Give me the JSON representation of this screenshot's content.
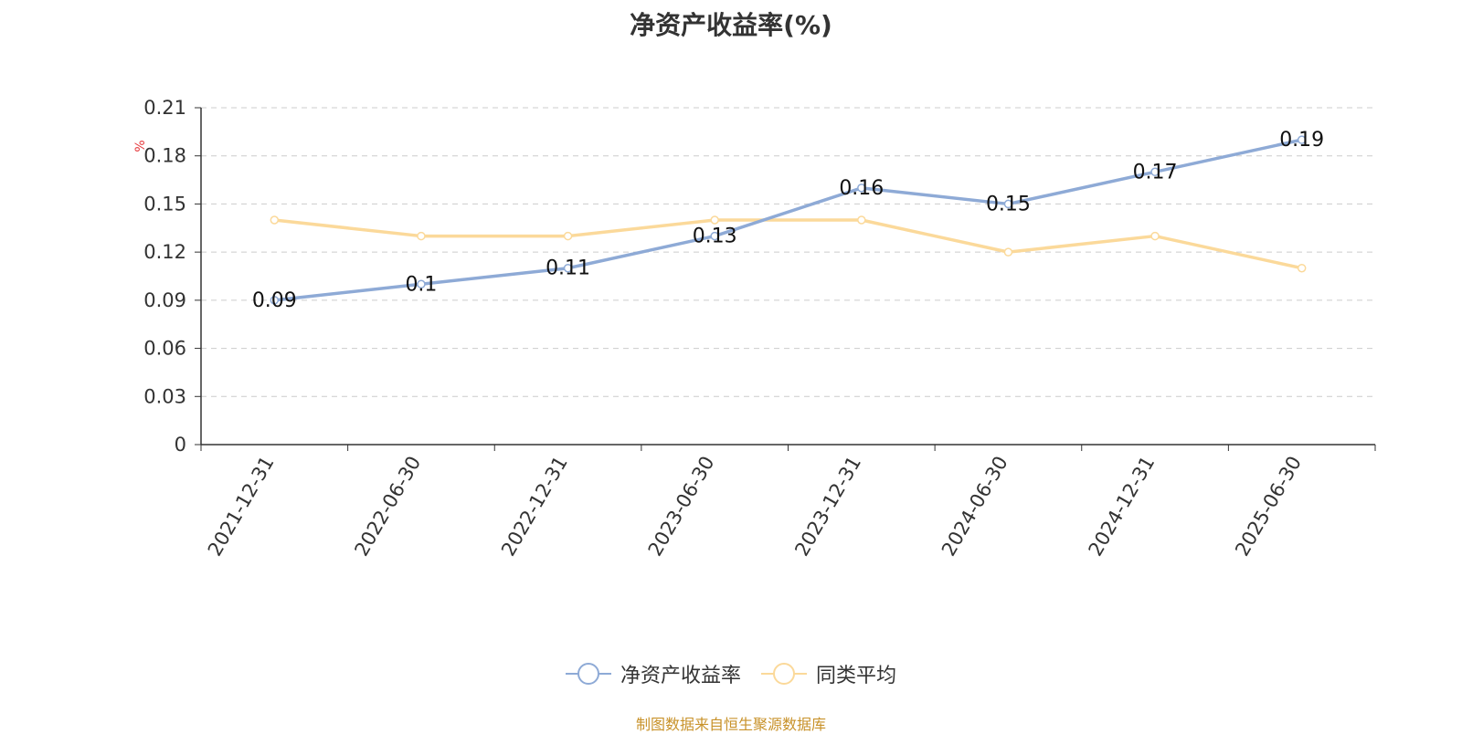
{
  "chart_data": {
    "type": "line",
    "title": "净资产收益率(%)",
    "ylabel": "%",
    "categories": [
      "2021-12-31",
      "2022-06-30",
      "2022-12-31",
      "2023-06-30",
      "2023-12-31",
      "2024-06-30",
      "2024-12-31",
      "2025-06-30"
    ],
    "ylim": [
      0,
      0.21
    ],
    "yticks": [
      "0",
      "0.03",
      "0.06",
      "0.09",
      "0.12",
      "0.15",
      "0.18",
      "0.21"
    ],
    "grid": true,
    "legend_position": "bottom",
    "series": [
      {
        "name": "净资产收益率",
        "color": "#8eaad6",
        "values": [
          0.09,
          0.1,
          0.11,
          0.13,
          0.16,
          0.15,
          0.17,
          0.19
        ],
        "labels": [
          "0.09",
          "0.1",
          "0.11",
          "0.13",
          "0.16",
          "0.15",
          "0.17",
          "0.19"
        ]
      },
      {
        "name": "同类平均",
        "color": "#fbd99a",
        "values": [
          0.14,
          0.13,
          0.13,
          0.14,
          0.14,
          0.12,
          0.13,
          0.11
        ]
      }
    ]
  },
  "footer": {
    "source": "制图数据来自恒生聚源数据库"
  }
}
